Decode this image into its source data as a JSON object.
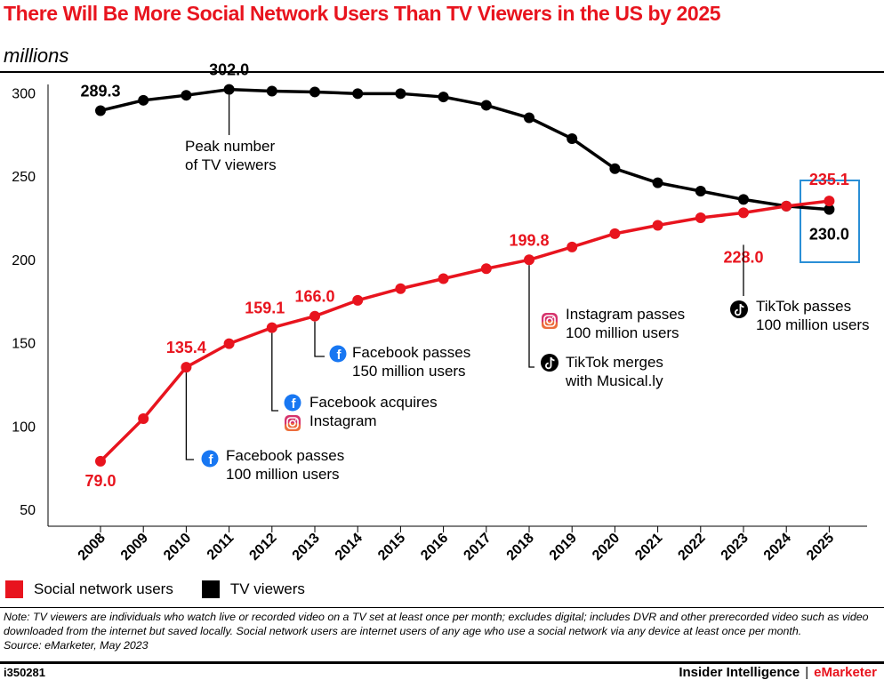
{
  "title": "There Will Be More Social Network Users Than TV Viewers in the US by 2025",
  "subtitle": "millions",
  "chart_data": {
    "type": "line",
    "x": [
      "2008",
      "2009",
      "2010",
      "2011",
      "2012",
      "2013",
      "2014",
      "2015",
      "2016",
      "2017",
      "2018",
      "2019",
      "2020",
      "2021",
      "2022",
      "2023",
      "2024",
      "2025"
    ],
    "ylim": [
      40,
      305
    ],
    "yticks": [
      50,
      100,
      150,
      200,
      250,
      300
    ],
    "grid": false,
    "legend_position": "bottom-left",
    "series": [
      {
        "name": "Social network users",
        "color": "#e8141e",
        "values": [
          79.0,
          104.5,
          135.4,
          149.5,
          159.1,
          166.0,
          175.5,
          182.5,
          188.5,
          194.5,
          199.8,
          207.5,
          215.5,
          220.5,
          225.0,
          228.0,
          232.0,
          235.1
        ]
      },
      {
        "name": "TV viewers",
        "color": "#000000",
        "values": [
          289.3,
          295.5,
          298.5,
          302.0,
          301.0,
          300.5,
          299.5,
          299.5,
          297.5,
          292.5,
          285.0,
          272.5,
          254.5,
          246.0,
          241.0,
          236.0,
          232.0,
          230.0
        ]
      }
    ],
    "data_labels": [
      {
        "series": 0,
        "index": 0,
        "text": "79.0"
      },
      {
        "series": 0,
        "index": 2,
        "text": "135.4"
      },
      {
        "series": 0,
        "index": 4,
        "text": "159.1"
      },
      {
        "series": 0,
        "index": 5,
        "text": "166.0"
      },
      {
        "series": 0,
        "index": 10,
        "text": "199.8"
      },
      {
        "series": 0,
        "index": 15,
        "text": "228.0"
      },
      {
        "series": 0,
        "index": 17,
        "text": "235.1"
      },
      {
        "series": 1,
        "index": 0,
        "text": "289.3"
      },
      {
        "series": 1,
        "index": 3,
        "text": "302.0"
      },
      {
        "series": 1,
        "index": 17,
        "text": "230.0"
      }
    ],
    "annotations": [
      {
        "index": 3,
        "lines": [
          "Peak number",
          "of TV viewers"
        ],
        "icons": []
      },
      {
        "index": 2,
        "lines": [
          "Facebook passes",
          "100 million users"
        ],
        "icons": [
          "facebook-icon"
        ]
      },
      {
        "index": 4,
        "lines": [
          "Facebook acquires",
          "Instagram"
        ],
        "icons": [
          "facebook-icon",
          "instagram-icon"
        ]
      },
      {
        "index": 5,
        "lines": [
          "Facebook passes",
          "150 million users"
        ],
        "icons": [
          "facebook-icon"
        ]
      },
      {
        "index": 10,
        "lines": [
          "Instagram passes",
          "100 million users"
        ],
        "icons": [
          "instagram-icon"
        ]
      },
      {
        "index": 10,
        "lines": [
          "TikTok merges",
          "with Musical.ly"
        ],
        "icons": [
          "tiktok-icon"
        ]
      },
      {
        "index": 15,
        "lines": [
          "TikTok passes",
          "100 million users"
        ],
        "icons": [
          "tiktok-icon"
        ]
      }
    ],
    "highlight_color": "#2a8fd6"
  },
  "legend": [
    {
      "label": "Social network users",
      "color": "#e8141e"
    },
    {
      "label": "TV viewers",
      "color": "#000000"
    }
  ],
  "note": "Note: TV viewers are individuals who watch live or recorded video on a TV set at least once per month; excludes digital; includes DVR and other prerecorded video such as video downloaded from the internet but saved locally. Social network users are internet users of any age who use a social network via any device at least once per month.",
  "source": "Source: eMarketer, May 2023",
  "footer": {
    "chart_id": "i350281",
    "brand_left": "Insider Intelligence",
    "brand_sep": "|",
    "brand_right": "eMarketer"
  }
}
